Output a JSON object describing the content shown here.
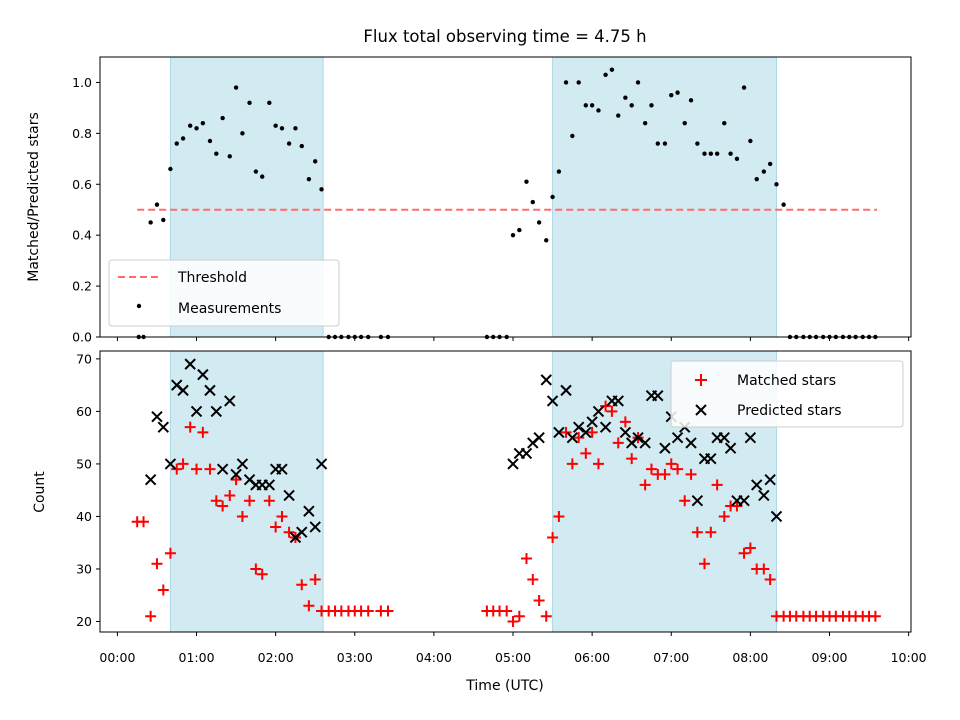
{
  "title": "Flux total observing time = 4.75 h",
  "colors": {
    "observing_band": "#add8e6",
    "threshold": "#ff6b6b",
    "measurement": "#000000",
    "matched": "#ff0000",
    "predicted": "#000000"
  },
  "chart_data": [
    {
      "type": "scatter",
      "ylabel": "Matched/Predicted stars",
      "ylim": [
        0,
        1.1
      ],
      "yticks": [
        "0.0",
        "0.2",
        "0.4",
        "0.6",
        "0.8",
        "1.0"
      ],
      "xlim_hours": [
        -0.22,
        10.03
      ],
      "shaded_intervals_hours": [
        [
          0.67,
          2.6
        ],
        [
          5.5,
          8.33
        ]
      ],
      "legend": {
        "position": "lower-left",
        "entries": [
          "Threshold",
          "Measurements"
        ]
      },
      "threshold": {
        "name": "Threshold",
        "value": 0.5,
        "x_range_hours": [
          0.25,
          9.6
        ]
      },
      "series": [
        {
          "name": "Measurements",
          "x": [
            0.27,
            0.33,
            0.42,
            0.5,
            0.58,
            0.67,
            0.75,
            0.83,
            0.92,
            1.0,
            1.08,
            1.17,
            1.25,
            1.33,
            1.42,
            1.5,
            1.58,
            1.67,
            1.75,
            1.83,
            1.92,
            2.0,
            2.08,
            2.17,
            2.25,
            2.33,
            2.42,
            2.5,
            2.58,
            2.67,
            2.75,
            2.83,
            2.92,
            3.0,
            3.08,
            3.17,
            3.33,
            3.42,
            4.67,
            4.75,
            4.83,
            4.92,
            5.0,
            5.08,
            5.17,
            5.25,
            5.33,
            5.42,
            5.5,
            5.58,
            5.67,
            5.75,
            5.83,
            5.92,
            6.0,
            6.08,
            6.17,
            6.25,
            6.33,
            6.42,
            6.5,
            6.58,
            6.67,
            6.75,
            6.83,
            6.92,
            7.0,
            7.08,
            7.17,
            7.25,
            7.33,
            7.42,
            7.5,
            7.58,
            7.67,
            7.75,
            7.83,
            7.92,
            8.0,
            8.08,
            8.17,
            8.25,
            8.33,
            8.42,
            8.5,
            8.58,
            8.67,
            8.75,
            8.83,
            8.92,
            9.0,
            9.08,
            9.17,
            9.25,
            9.33,
            9.42,
            9.5,
            9.58
          ],
          "y": [
            0,
            0,
            0.45,
            0.52,
            0.46,
            0.66,
            0.76,
            0.78,
            0.83,
            0.82,
            0.84,
            0.77,
            0.72,
            0.86,
            0.71,
            0.98,
            0.8,
            0.92,
            0.65,
            0.63,
            0.92,
            0.83,
            0.82,
            0.76,
            0.82,
            0.75,
            0.62,
            0.69,
            0.58,
            0,
            0,
            0,
            0,
            0,
            0,
            0,
            0,
            0,
            0,
            0,
            0,
            0,
            0.4,
            0.42,
            0.61,
            0.53,
            0.45,
            0.38,
            0.55,
            0.65,
            1.0,
            0.79,
            1.0,
            0.91,
            0.91,
            0.89,
            1.03,
            1.05,
            0.87,
            0.94,
            0.91,
            1.0,
            0.84,
            0.91,
            0.76,
            0.76,
            0.95,
            0.96,
            0.84,
            0.93,
            0.76,
            0.72,
            0.72,
            0.72,
            0.84,
            0.72,
            0.7,
            0.98,
            0.77,
            0.62,
            0.65,
            0.68,
            0.6,
            0.52,
            0,
            0,
            0,
            0,
            0,
            0,
            0,
            0,
            0,
            0,
            0,
            0,
            0,
            0
          ]
        }
      ]
    },
    {
      "type": "scatter",
      "ylabel": "Count",
      "xlabel": "Time (UTC)",
      "ylim": [
        18,
        71.5
      ],
      "yticks": [
        "20",
        "30",
        "40",
        "50",
        "60",
        "70"
      ],
      "xticks": [
        "00:00",
        "01:00",
        "02:00",
        "03:00",
        "04:00",
        "05:00",
        "06:00",
        "07:00",
        "08:00",
        "09:00",
        "10:00"
      ],
      "xlim_hours": [
        -0.22,
        10.03
      ],
      "shaded_intervals_hours": [
        [
          0.67,
          2.6
        ],
        [
          5.5,
          8.33
        ]
      ],
      "legend": {
        "position": "top-right",
        "entries": [
          "Matched stars",
          "Predicted stars"
        ]
      },
      "series": [
        {
          "name": "Matched stars",
          "marker": "plus",
          "x": [
            0.25,
            0.33,
            0.42,
            0.5,
            0.58,
            0.67,
            0.75,
            0.83,
            0.92,
            1.0,
            1.08,
            1.17,
            1.25,
            1.33,
            1.42,
            1.5,
            1.58,
            1.67,
            1.75,
            1.83,
            1.92,
            2.0,
            2.08,
            2.17,
            2.25,
            2.33,
            2.42,
            2.5,
            2.58,
            2.67,
            2.75,
            2.83,
            2.92,
            3.0,
            3.08,
            3.17,
            3.33,
            3.42,
            4.67,
            4.75,
            4.83,
            4.92,
            5.0,
            5.08,
            5.17,
            5.25,
            5.33,
            5.42,
            5.5,
            5.58,
            5.67,
            5.75,
            5.83,
            5.92,
            6.0,
            6.08,
            6.17,
            6.25,
            6.33,
            6.42,
            6.5,
            6.58,
            6.67,
            6.75,
            6.83,
            6.92,
            7.0,
            7.08,
            7.17,
            7.25,
            7.33,
            7.42,
            7.5,
            7.58,
            7.67,
            7.75,
            7.83,
            7.92,
            8.0,
            8.08,
            8.17,
            8.25,
            8.33,
            8.42,
            8.5,
            8.58,
            8.67,
            8.75,
            8.83,
            8.92,
            9.0,
            9.08,
            9.17,
            9.25,
            9.33,
            9.42,
            9.5,
            9.58
          ],
          "y": [
            39,
            39,
            21,
            31,
            26,
            33,
            49,
            50,
            57,
            49,
            56,
            49,
            43,
            42,
            44,
            47,
            40,
            43,
            30,
            29,
            43,
            38,
            40,
            37,
            36,
            27,
            23,
            28,
            22,
            22,
            22,
            22,
            22,
            22,
            22,
            22,
            22,
            22,
            22,
            22,
            22,
            22,
            20,
            21,
            32,
            28,
            24,
            21,
            36,
            40,
            56,
            50,
            55,
            52,
            56,
            50,
            61,
            60,
            54,
            58,
            51,
            55,
            46,
            49,
            48,
            48,
            50,
            49,
            43,
            48,
            37,
            31,
            37,
            46,
            40,
            42,
            42,
            33,
            34,
            30,
            30,
            28,
            21,
            21,
            21,
            21,
            21,
            21,
            21,
            21,
            21,
            21,
            21,
            21,
            21,
            21,
            21,
            21
          ]
        },
        {
          "name": "Predicted stars",
          "marker": "x",
          "x": [
            0.42,
            0.5,
            0.58,
            0.67,
            0.75,
            0.83,
            0.92,
            1.0,
            1.08,
            1.17,
            1.25,
            1.33,
            1.42,
            1.5,
            1.58,
            1.67,
            1.75,
            1.83,
            1.92,
            2.0,
            2.08,
            2.17,
            2.25,
            2.33,
            2.42,
            2.5,
            2.58,
            5.0,
            5.08,
            5.17,
            5.25,
            5.33,
            5.42,
            5.5,
            5.58,
            5.67,
            5.75,
            5.83,
            5.92,
            6.0,
            6.08,
            6.17,
            6.25,
            6.33,
            6.42,
            6.5,
            6.58,
            6.67,
            6.75,
            6.83,
            6.92,
            7.0,
            7.08,
            7.17,
            7.25,
            7.33,
            7.42,
            7.5,
            7.58,
            7.67,
            7.75,
            7.83,
            7.92,
            8.0,
            8.08,
            8.17,
            8.25,
            8.33
          ],
          "y": [
            47,
            59,
            57,
            50,
            65,
            64,
            69,
            60,
            67,
            64,
            60,
            49,
            62,
            48,
            50,
            47,
            46,
            46,
            46,
            49,
            49,
            44,
            36,
            37,
            41,
            38,
            50,
            50,
            52,
            52,
            54,
            55,
            66,
            62,
            56,
            64,
            55,
            57,
            56,
            58,
            60,
            57,
            62,
            62,
            56,
            54,
            55,
            54,
            63,
            63,
            53,
            59,
            55,
            57,
            54,
            43,
            51,
            51,
            55,
            55,
            53,
            43,
            43,
            55,
            46,
            44,
            47,
            40
          ]
        }
      ]
    }
  ]
}
